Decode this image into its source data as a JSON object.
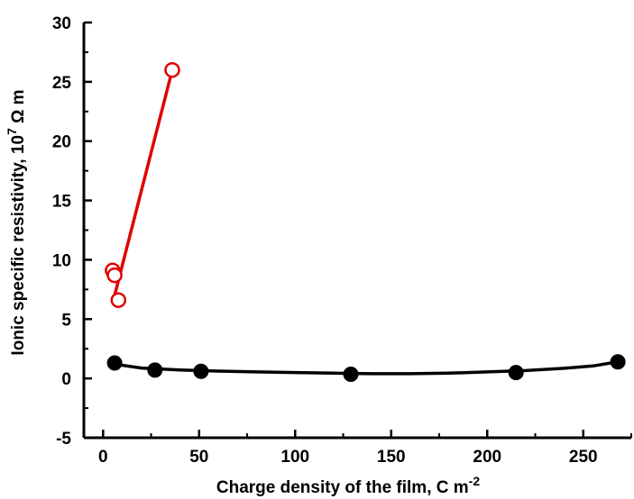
{
  "chart_data": {
    "type": "scatter",
    "title": "",
    "xlabel": "Charge density of the film, C m",
    "xlabel_sup": "-2",
    "ylabel_prefix": "Ionic specific resistivity, 10",
    "ylabel_sup": "7",
    "ylabel_suffix": " Ω m",
    "xlim": [
      -10,
      275
    ],
    "ylim": [
      -5,
      30
    ],
    "x_ticks": [
      0,
      50,
      100,
      150,
      200,
      250
    ],
    "x_tick_labels": [
      "0",
      "50",
      "100",
      "150",
      "200",
      "250"
    ],
    "y_ticks": [
      -5,
      0,
      5,
      10,
      15,
      20,
      25,
      30
    ],
    "y_tick_labels": [
      "-5",
      "0",
      "5",
      "10",
      "15",
      "20",
      "25",
      "30"
    ],
    "grid": false,
    "series": [
      {
        "marker": "open-circle",
        "color": "#e00000",
        "x": [
          5,
          6,
          8,
          36
        ],
        "y": [
          9.1,
          8.7,
          6.6,
          26.0
        ],
        "fit_line": {
          "x": [
            6,
            36
          ],
          "y": [
            7.0,
            26.0
          ]
        }
      },
      {
        "marker": "filled-circle",
        "color": "#000000",
        "x": [
          6,
          27,
          51,
          129,
          215,
          268
        ],
        "y": [
          1.3,
          0.7,
          0.6,
          0.35,
          0.5,
          1.4
        ],
        "fit_curve": {
          "x": [
            6,
            20,
            40,
            60,
            80,
            100,
            120,
            140,
            160,
            180,
            200,
            220,
            240,
            255,
            268
          ],
          "y": [
            1.2,
            0.88,
            0.72,
            0.62,
            0.55,
            0.5,
            0.44,
            0.4,
            0.4,
            0.44,
            0.55,
            0.66,
            0.85,
            1.05,
            1.4
          ]
        }
      }
    ]
  }
}
